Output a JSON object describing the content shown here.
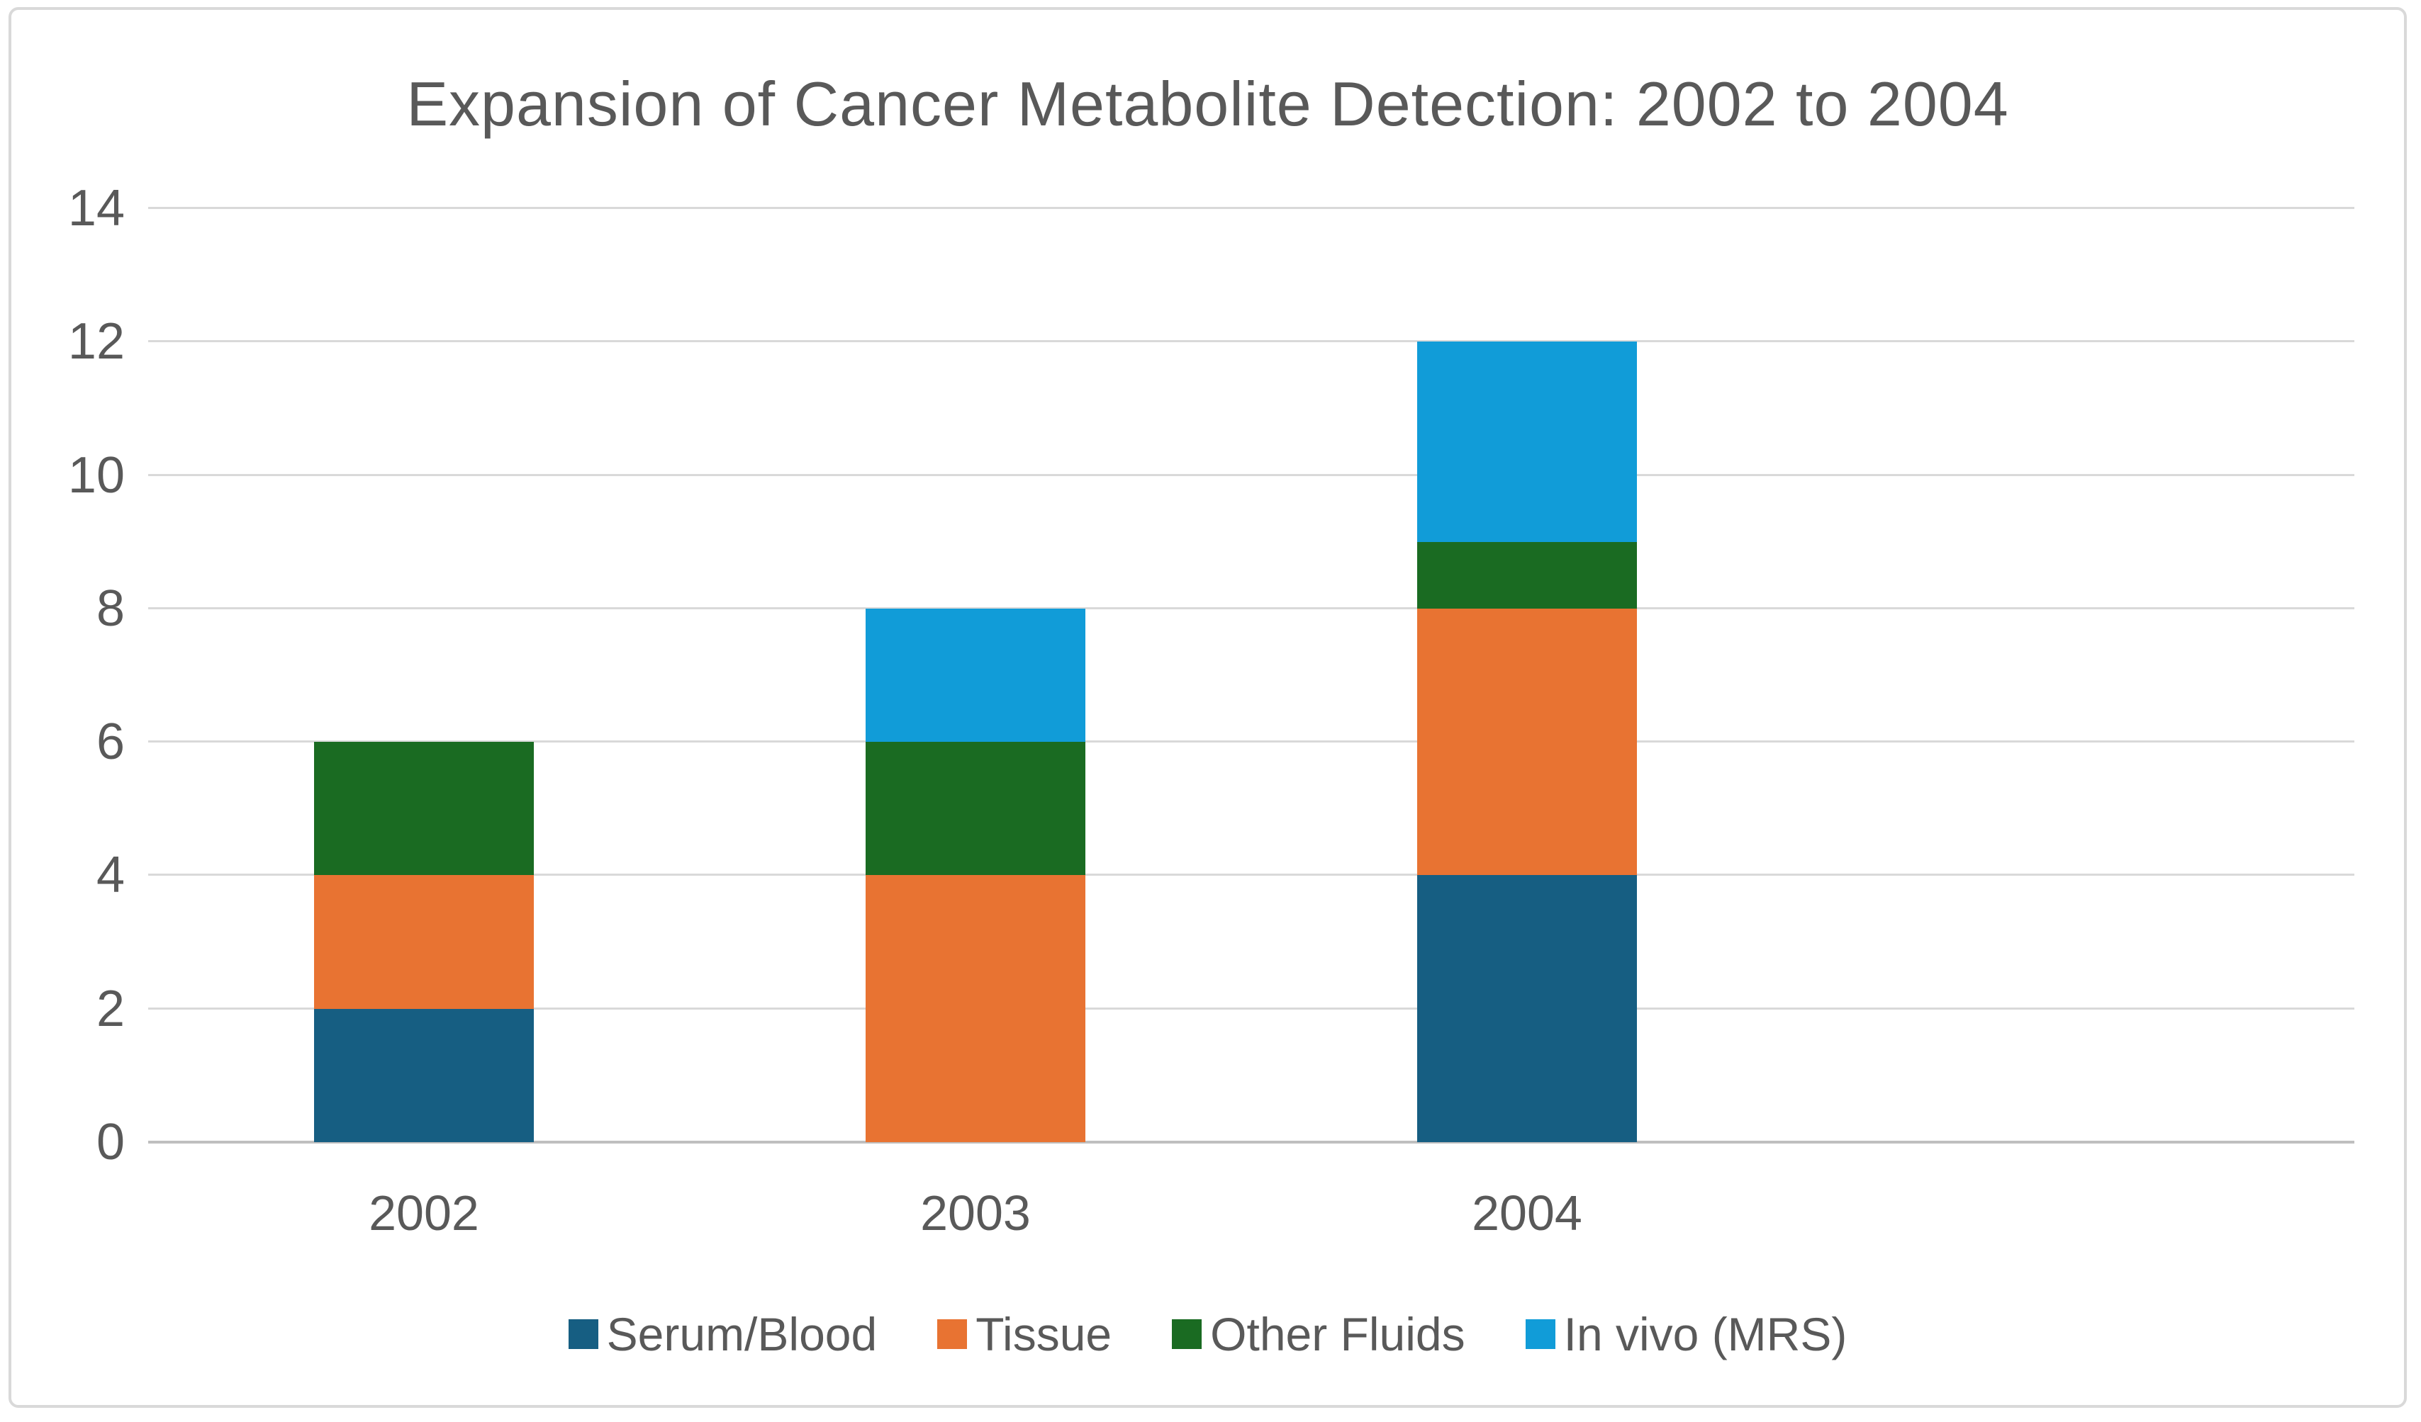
{
  "chart_data": {
    "type": "bar",
    "stacked": true,
    "title": "Expansion of Cancer Metabolite Detection: 2002 to 2004",
    "categories": [
      "2002",
      "2003",
      "2004"
    ],
    "series": [
      {
        "name": "Serum/Blood",
        "color": "#165E82",
        "values": [
          2,
          0,
          4
        ]
      },
      {
        "name": "Tissue",
        "color": "#E87332",
        "values": [
          2,
          4,
          4
        ]
      },
      {
        "name": "Other Fluids",
        "color": "#1A6B22",
        "values": [
          2,
          2,
          1
        ]
      },
      {
        "name": "In vivo (MRS)",
        "color": "#119CD8",
        "values": [
          0,
          2,
          3
        ]
      }
    ],
    "yticks": [
      0,
      2,
      4,
      6,
      8,
      10,
      12,
      14
    ],
    "ylim": [
      0,
      14
    ],
    "xlabel": "",
    "ylabel": "",
    "grid": true,
    "legend_position": "bottom"
  },
  "colors": {
    "gridline": "#D9D9D9",
    "axis_line": "#BFBFBF",
    "text": "#595959",
    "frame_border": "#D9D9D9",
    "background": "#FFFFFF"
  }
}
